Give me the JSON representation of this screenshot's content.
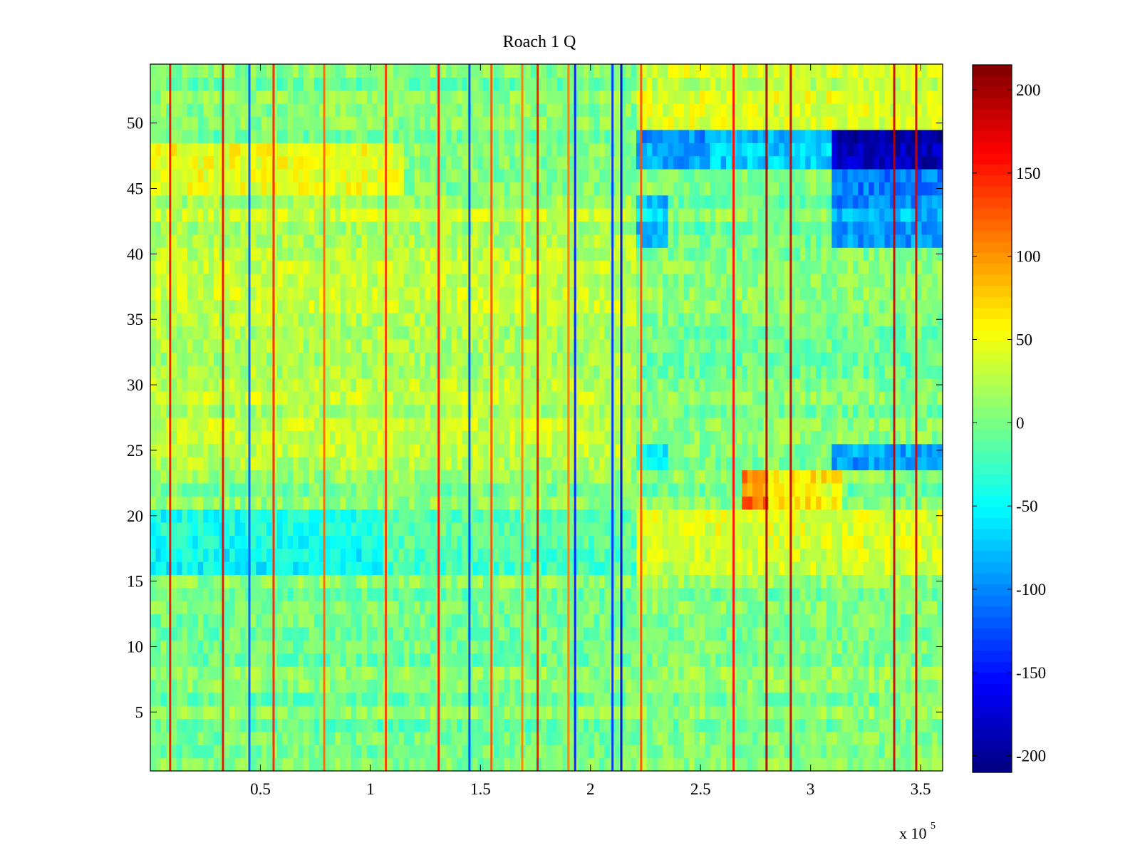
{
  "chart_data": {
    "type": "heatmap",
    "title": "Roach 1 Q",
    "xlabel": "",
    "ylabel": "",
    "x_exponent_label": "x 10",
    "x_exponent_power": "5",
    "x_range": [
      0,
      360000
    ],
    "y_range": [
      0.5,
      54.5
    ],
    "x_ticks": [
      {
        "value": 0.5,
        "label": "0.5"
      },
      {
        "value": 1,
        "label": "1"
      },
      {
        "value": 1.5,
        "label": "1.5"
      },
      {
        "value": 2,
        "label": "2"
      },
      {
        "value": 2.5,
        "label": "2.5"
      },
      {
        "value": 3,
        "label": "3"
      },
      {
        "value": 3.5,
        "label": "3.5"
      }
    ],
    "y_ticks": [
      {
        "value": 5,
        "label": "5"
      },
      {
        "value": 10,
        "label": "10"
      },
      {
        "value": 15,
        "label": "15"
      },
      {
        "value": 20,
        "label": "20"
      },
      {
        "value": 25,
        "label": "25"
      },
      {
        "value": 30,
        "label": "30"
      },
      {
        "value": 35,
        "label": "35"
      },
      {
        "value": 40,
        "label": "40"
      },
      {
        "value": 45,
        "label": "45"
      },
      {
        "value": 50,
        "label": "50"
      }
    ],
    "colorbar": {
      "colormap": "jet",
      "range": [
        -210,
        215
      ],
      "ticks": [
        {
          "value": 200,
          "label": "200"
        },
        {
          "value": 150,
          "label": "150"
        },
        {
          "value": 100,
          "label": "100"
        },
        {
          "value": 50,
          "label": "50"
        },
        {
          "value": 0,
          "label": "0"
        },
        {
          "value": -50,
          "label": "-50"
        },
        {
          "value": -100,
          "label": "-100"
        },
        {
          "value": -150,
          "label": "-150"
        },
        {
          "value": -200,
          "label": "-200"
        }
      ]
    },
    "rows": 54,
    "x_unit_scale": 100000,
    "background_level": 0,
    "regions": [
      {
        "x0": 0,
        "x1": 1.15,
        "y0": 45,
        "y1": 49,
        "value": 45
      },
      {
        "x0": 0,
        "x1": 2.2,
        "y0": 24,
        "y1": 45,
        "value": 25
      },
      {
        "x0": 0,
        "x1": 1.05,
        "y0": 16,
        "y1": 20.5,
        "value": -45
      },
      {
        "x0": 1.05,
        "x1": 2.2,
        "y0": 16,
        "y1": 20.5,
        "value": -15
      },
      {
        "x0": 0,
        "x1": 2.2,
        "y0": 21,
        "y1": 23.5,
        "value": 5
      },
      {
        "x0": 2.2,
        "x1": 3.6,
        "y0": 16,
        "y1": 21,
        "value": 40
      },
      {
        "x0": 2.7,
        "x1": 2.8,
        "y0": 21,
        "y1": 23.5,
        "value": 110
      },
      {
        "x0": 2.8,
        "x1": 3.15,
        "y0": 21,
        "y1": 23.5,
        "value": 55
      },
      {
        "x0": 2.2,
        "x1": 2.55,
        "y0": 47,
        "y1": 49.5,
        "value": -90
      },
      {
        "x0": 2.55,
        "x1": 3.1,
        "y0": 47,
        "y1": 49.5,
        "value": -75
      },
      {
        "x0": 3.1,
        "x1": 3.6,
        "y0": 47,
        "y1": 49.5,
        "value": -190
      },
      {
        "x0": 3.1,
        "x1": 3.6,
        "y0": 45,
        "y1": 46.5,
        "value": -110
      },
      {
        "x0": 3.1,
        "x1": 3.6,
        "y0": 40.5,
        "y1": 45,
        "value": -90
      },
      {
        "x0": 2.2,
        "x1": 2.35,
        "y0": 40.5,
        "y1": 45,
        "value": -70
      },
      {
        "x0": 3.1,
        "x1": 3.6,
        "y0": 23.5,
        "y1": 26,
        "value": -90
      },
      {
        "x0": 2.2,
        "x1": 2.35,
        "y0": 23.5,
        "y1": 26,
        "value": -55
      },
      {
        "x0": 2.2,
        "x1": 3.6,
        "y0": 50,
        "y1": 54.5,
        "value": 35
      },
      {
        "x0": 2.2,
        "x1": 3.6,
        "y0": 0.5,
        "y1": 16,
        "value": 5
      }
    ],
    "vertical_lines": [
      {
        "x": 0.09,
        "value": 160
      },
      {
        "x": 0.33,
        "value": 170
      },
      {
        "x": 0.56,
        "value": 150
      },
      {
        "x": 0.79,
        "value": 120
      },
      {
        "x": 1.07,
        "value": 140
      },
      {
        "x": 1.31,
        "value": 160
      },
      {
        "x": 1.55,
        "value": 130
      },
      {
        "x": 1.69,
        "value": 110
      },
      {
        "x": 1.76,
        "value": 160
      },
      {
        "x": 1.9,
        "value": 110
      },
      {
        "x": 2.1,
        "value": -140
      },
      {
        "x": 2.14,
        "value": -180
      },
      {
        "x": 2.23,
        "value": 130
      },
      {
        "x": 2.65,
        "value": 160
      },
      {
        "x": 2.8,
        "value": 200
      },
      {
        "x": 2.91,
        "value": 190
      },
      {
        "x": 3.38,
        "value": 190
      },
      {
        "x": 3.48,
        "value": 180
      },
      {
        "x": 0.45,
        "value": -120
      },
      {
        "x": 1.45,
        "value": -130
      },
      {
        "x": 1.93,
        "value": -150
      }
    ]
  }
}
